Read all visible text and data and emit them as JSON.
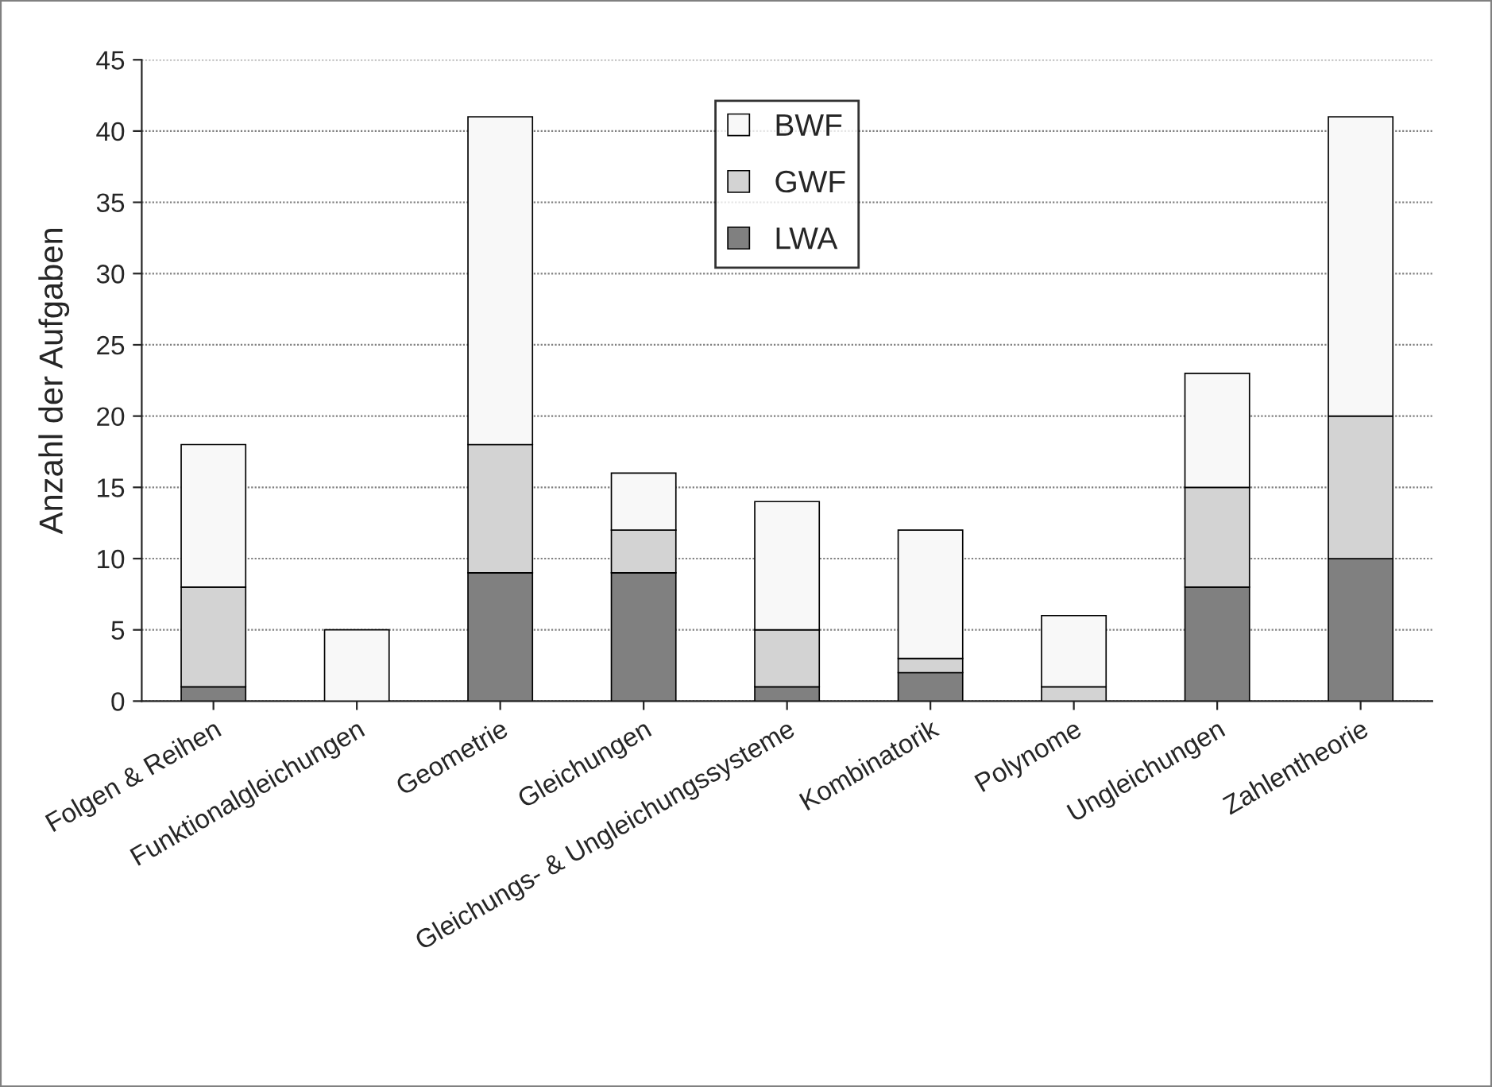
{
  "chart_data": {
    "type": "bar",
    "stacked": true,
    "ylabel": "Anzahl der Aufgaben",
    "categories": [
      "Folgen & Reihen",
      "Funktionalgleichungen",
      "Geometrie",
      "Gleichungen",
      "Gleichungs- & Ungleichungssysteme",
      "Kombinatorik",
      "Polynome",
      "Ungleichungen",
      "Zahlentheorie"
    ],
    "series": [
      {
        "name": "LWA",
        "color": "#808080",
        "values": [
          1,
          0,
          9,
          9,
          1,
          2,
          0,
          8,
          10
        ]
      },
      {
        "name": "GWF",
        "color": "#d3d3d3",
        "values": [
          7,
          0,
          9,
          3,
          4,
          1,
          1,
          7,
          10
        ]
      },
      {
        "name": "BWF",
        "color": "#f8f8f8",
        "values": [
          10,
          5,
          23,
          4,
          9,
          9,
          5,
          8,
          21
        ]
      }
    ],
    "ylim": [
      0,
      45
    ],
    "yticks": [
      0,
      5,
      10,
      15,
      20,
      25,
      30,
      35,
      40,
      45
    ],
    "grid": "y",
    "legend": "top"
  }
}
